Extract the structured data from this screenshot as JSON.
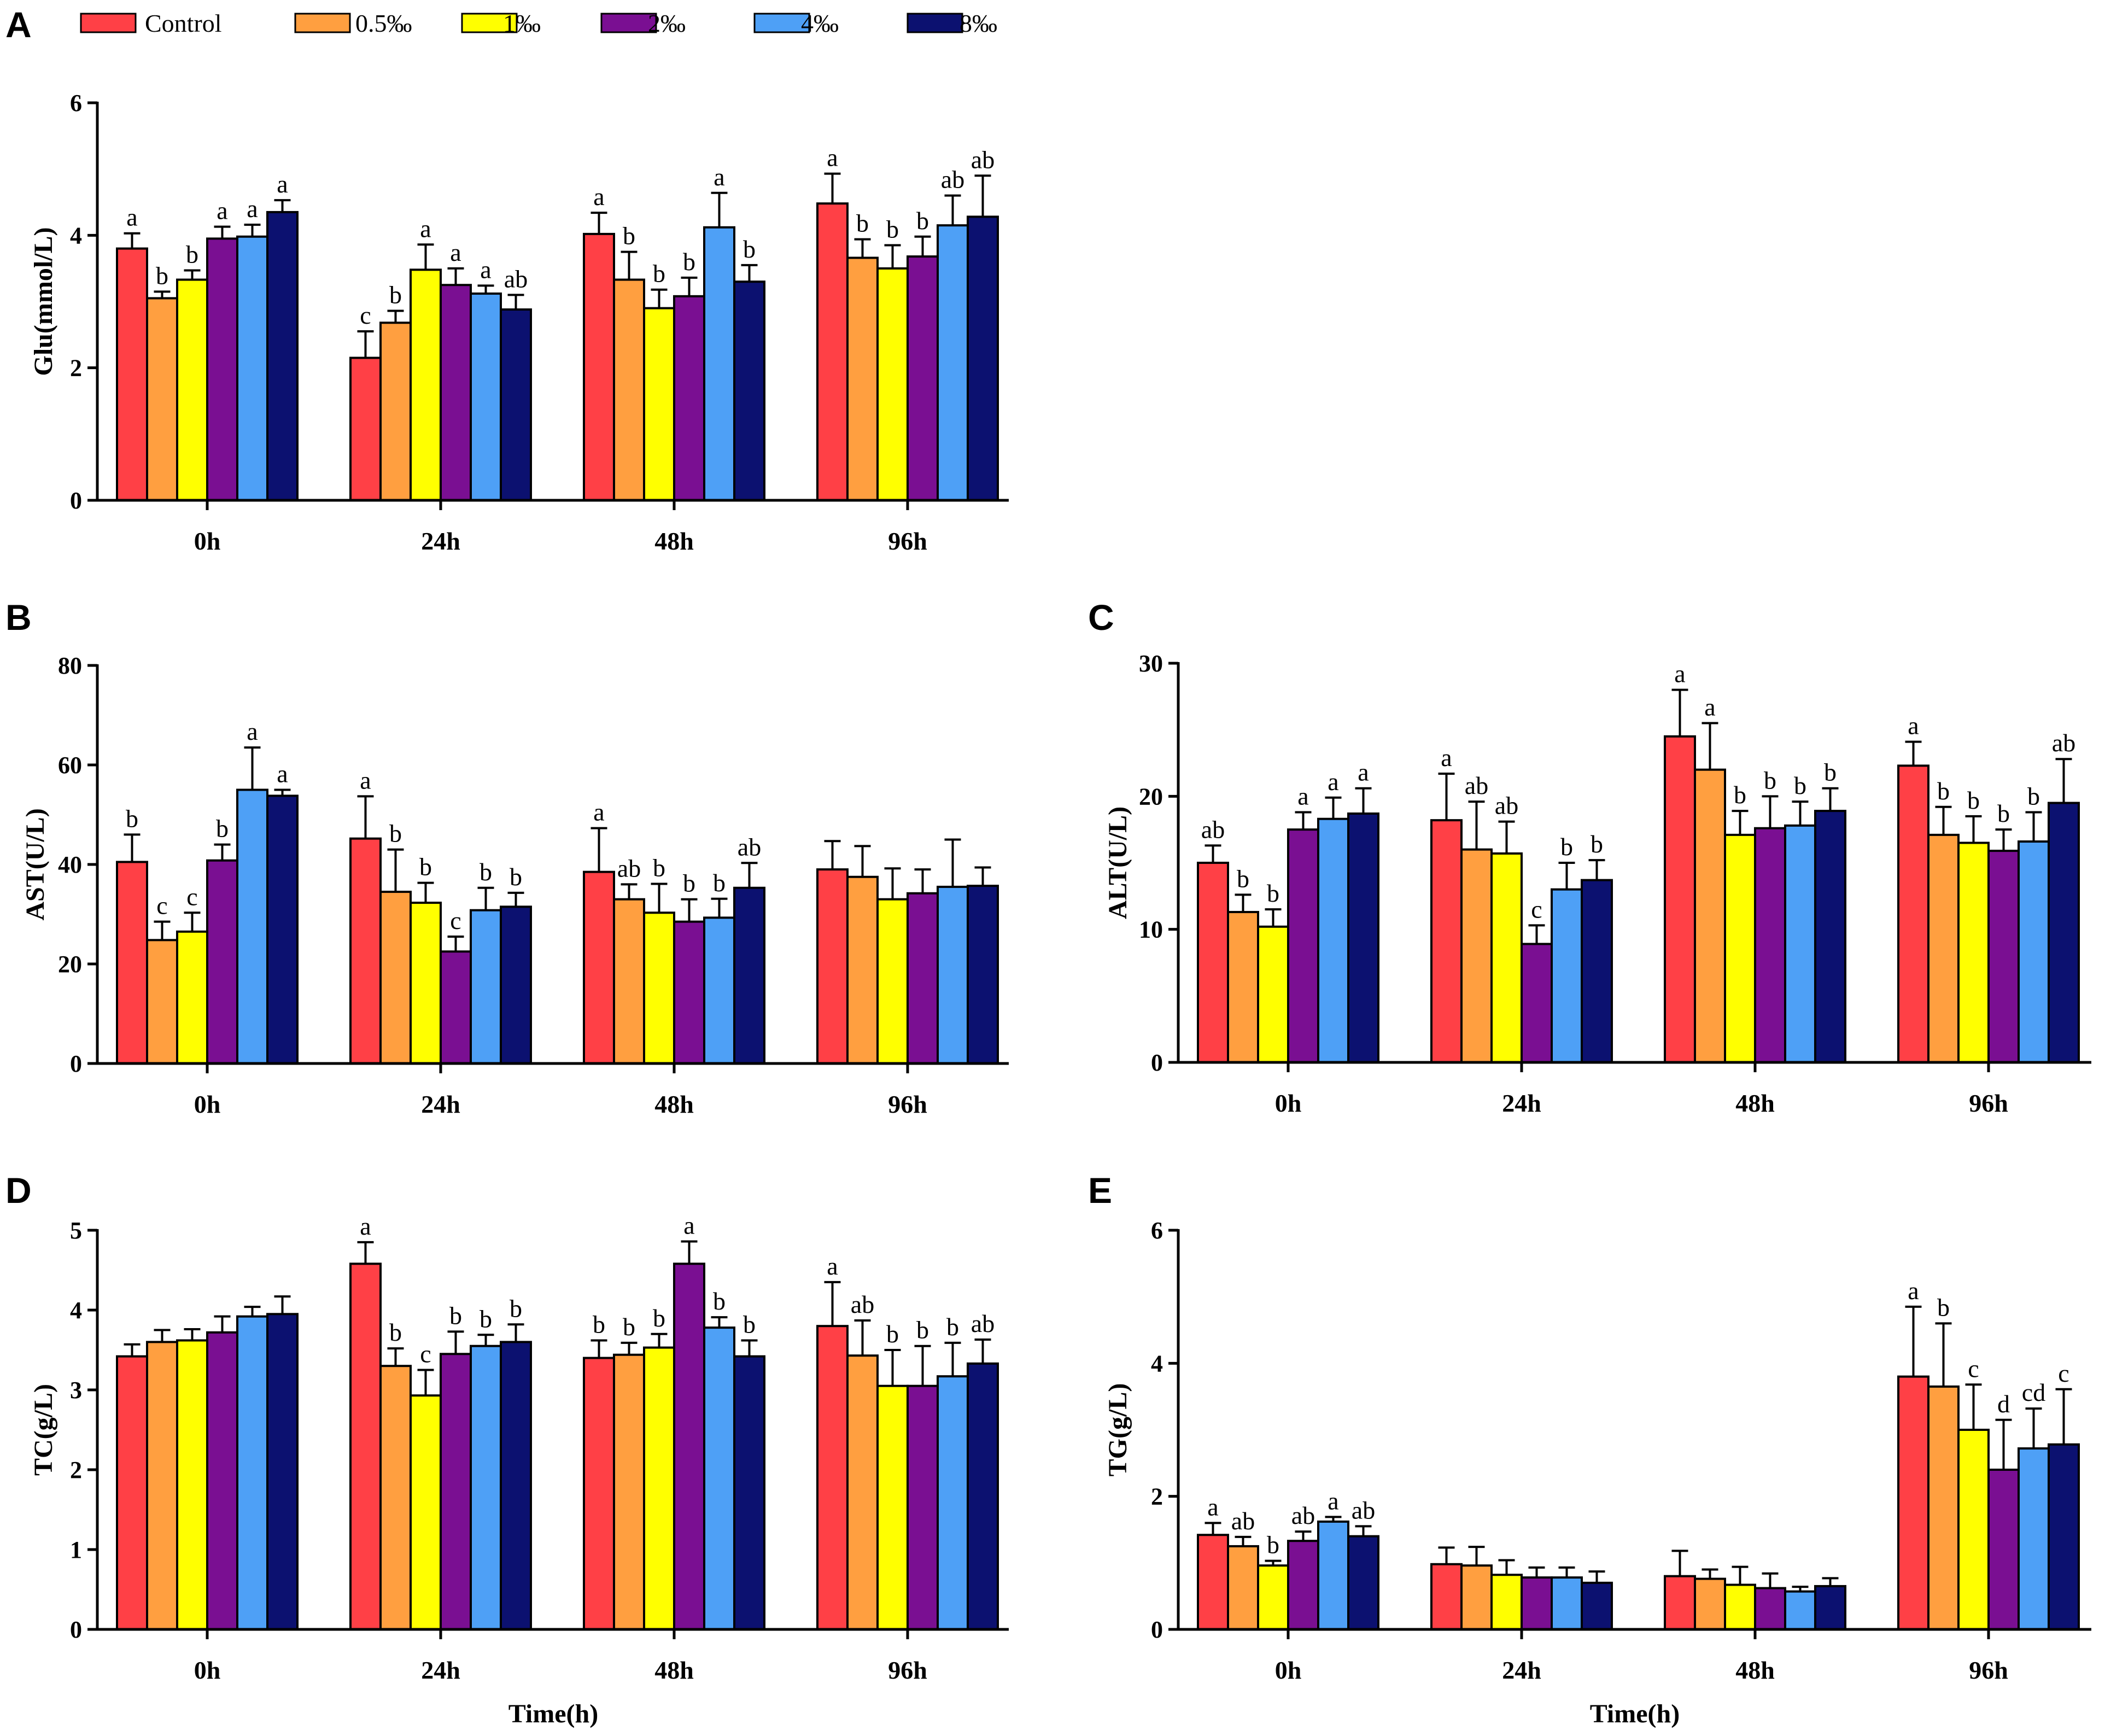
{
  "legend": [
    {
      "label": "Control",
      "color": "#ff4046"
    },
    {
      "label": "0.5‰",
      "color": "#ff9f40"
    },
    {
      "label": "1‰",
      "color": "#ffff00"
    },
    {
      "label": "2‰",
      "color": "#7a0f92"
    },
    {
      "label": "4‰",
      "color": "#4ea0f6"
    },
    {
      "label": "8‰",
      "color": "#0c1170"
    }
  ],
  "chart_data": [
    {
      "panel": "A",
      "type": "bar",
      "ylabel": "Glu(mmol/L)",
      "xlabel": "",
      "ylim": [
        0,
        6
      ],
      "yticks": [
        0,
        2,
        4,
        6
      ],
      "categories": [
        "0h",
        "24h",
        "48h",
        "96h"
      ],
      "series": [
        {
          "name": "Control",
          "values": [
            3.8,
            2.15,
            4.02,
            4.48
          ],
          "errors": [
            0.23,
            0.4,
            0.32,
            0.45
          ],
          "letters": [
            "a",
            "c",
            "a",
            "a"
          ]
        },
        {
          "name": "0.5‰",
          "values": [
            3.05,
            2.68,
            3.33,
            3.66
          ],
          "errors": [
            0.1,
            0.18,
            0.42,
            0.28
          ],
          "letters": [
            "b",
            "b",
            "b",
            "b"
          ]
        },
        {
          "name": "1‰",
          "values": [
            3.33,
            3.48,
            2.9,
            3.5
          ],
          "errors": [
            0.14,
            0.38,
            0.28,
            0.35
          ],
          "letters": [
            "b",
            "a",
            "b",
            "b"
          ]
        },
        {
          "name": "2‰",
          "values": [
            3.95,
            3.25,
            3.08,
            3.68
          ],
          "errors": [
            0.18,
            0.25,
            0.28,
            0.3
          ],
          "letters": [
            "a",
            "a",
            "b",
            "b"
          ]
        },
        {
          "name": "4‰",
          "values": [
            3.98,
            3.12,
            4.12,
            4.15
          ],
          "errors": [
            0.18,
            0.12,
            0.52,
            0.45
          ],
          "letters": [
            "a",
            "a",
            "a",
            "ab"
          ]
        },
        {
          "name": "8‰",
          "values": [
            4.35,
            2.88,
            3.3,
            4.28
          ],
          "errors": [
            0.18,
            0.22,
            0.25,
            0.62
          ],
          "letters": [
            "a",
            "ab",
            "b",
            "ab"
          ]
        }
      ]
    },
    {
      "panel": "B",
      "type": "bar",
      "ylabel": "AST(U/L)",
      "xlabel": "",
      "ylim": [
        0,
        80
      ],
      "yticks": [
        0,
        20,
        40,
        60,
        80
      ],
      "categories": [
        "0h",
        "24h",
        "48h",
        "96h"
      ],
      "series": [
        {
          "name": "Control",
          "values": [
            40.5,
            45.2,
            38.5,
            39.0
          ],
          "errors": [
            5.5,
            8.5,
            8.8,
            5.7
          ],
          "letters": [
            "b",
            "a",
            "a",
            ""
          ]
        },
        {
          "name": "0.5‰",
          "values": [
            24.8,
            34.5,
            33.0,
            37.5
          ],
          "errors": [
            3.7,
            8.5,
            3.0,
            6.2
          ],
          "letters": [
            "c",
            "b",
            "ab",
            ""
          ]
        },
        {
          "name": "1‰",
          "values": [
            26.5,
            32.3,
            30.3,
            33.0
          ],
          "errors": [
            3.8,
            4.0,
            5.8,
            6.2
          ],
          "letters": [
            "c",
            "b",
            "b",
            ""
          ]
        },
        {
          "name": "2‰",
          "values": [
            40.8,
            22.5,
            28.5,
            34.2
          ],
          "errors": [
            3.2,
            3.0,
            4.5,
            4.8
          ],
          "letters": [
            "b",
            "c",
            "b",
            ""
          ]
        },
        {
          "name": "4‰",
          "values": [
            55.0,
            30.8,
            29.3,
            35.5
          ],
          "errors": [
            8.5,
            4.5,
            3.8,
            9.5
          ],
          "letters": [
            "a",
            "b",
            "b",
            ""
          ]
        },
        {
          "name": "8‰",
          "values": [
            53.8,
            31.5,
            35.3,
            35.7
          ],
          "errors": [
            1.2,
            2.8,
            5.0,
            3.7
          ],
          "letters": [
            "a",
            "b",
            "ab",
            ""
          ]
        }
      ]
    },
    {
      "panel": "C",
      "type": "bar",
      "ylabel": "ALT(U/L)",
      "xlabel": "",
      "ylim": [
        0,
        30
      ],
      "yticks": [
        0,
        10,
        20,
        30
      ],
      "categories": [
        "0h",
        "24h",
        "48h",
        "96h"
      ],
      "series": [
        {
          "name": "Control",
          "values": [
            15.0,
            18.2,
            24.5,
            22.3
          ],
          "errors": [
            1.3,
            3.5,
            3.5,
            1.8
          ],
          "letters": [
            "ab",
            "a",
            "a",
            "a"
          ]
        },
        {
          "name": "0.5‰",
          "values": [
            11.3,
            16.0,
            22.0,
            17.1
          ],
          "errors": [
            1.3,
            3.6,
            3.5,
            2.1
          ],
          "letters": [
            "b",
            "ab",
            "a",
            "b"
          ]
        },
        {
          "name": "1‰",
          "values": [
            10.2,
            15.7,
            17.1,
            16.5
          ],
          "errors": [
            1.3,
            2.4,
            1.8,
            2.0
          ],
          "letters": [
            "b",
            "ab",
            "b",
            "b"
          ]
        },
        {
          "name": "2‰",
          "values": [
            17.5,
            8.9,
            17.6,
            15.9
          ],
          "errors": [
            1.3,
            1.4,
            2.4,
            1.6
          ],
          "letters": [
            "a",
            "c",
            "b",
            "b"
          ]
        },
        {
          "name": "4‰",
          "values": [
            18.3,
            13.0,
            17.8,
            16.6
          ],
          "errors": [
            1.6,
            2.0,
            1.8,
            2.2
          ],
          "letters": [
            "a",
            "b",
            "b",
            "b"
          ]
        },
        {
          "name": "8‰",
          "values": [
            18.7,
            13.7,
            18.9,
            19.5
          ],
          "errors": [
            1.9,
            1.5,
            1.7,
            3.3
          ],
          "letters": [
            "a",
            "b",
            "b",
            "ab"
          ]
        }
      ]
    },
    {
      "panel": "D",
      "type": "bar",
      "ylabel": "TC(g/L)",
      "xlabel": "Time(h)",
      "ylim": [
        0,
        5
      ],
      "yticks": [
        0,
        1,
        2,
        3,
        4,
        5
      ],
      "categories": [
        "0h",
        "24h",
        "48h",
        "96h"
      ],
      "series": [
        {
          "name": "Control",
          "values": [
            3.42,
            4.58,
            3.4,
            3.8
          ],
          "errors": [
            0.15,
            0.27,
            0.22,
            0.55
          ],
          "letters": [
            "",
            "a",
            "b",
            "a"
          ]
        },
        {
          "name": "0.5‰",
          "values": [
            3.6,
            3.3,
            3.44,
            3.43
          ],
          "errors": [
            0.15,
            0.22,
            0.15,
            0.44
          ],
          "letters": [
            "",
            "b",
            "b",
            "ab"
          ]
        },
        {
          "name": "1‰",
          "values": [
            3.62,
            2.93,
            3.53,
            3.05
          ],
          "errors": [
            0.14,
            0.32,
            0.17,
            0.45
          ],
          "letters": [
            "",
            "c",
            "b",
            "b"
          ]
        },
        {
          "name": "2‰",
          "values": [
            3.72,
            3.45,
            4.58,
            3.05
          ],
          "errors": [
            0.2,
            0.28,
            0.28,
            0.5
          ],
          "letters": [
            "",
            "b",
            "a",
            "b"
          ]
        },
        {
          "name": "4‰",
          "values": [
            3.92,
            3.55,
            3.78,
            3.17
          ],
          "errors": [
            0.12,
            0.14,
            0.13,
            0.42
          ],
          "letters": [
            "",
            "b",
            "b",
            "b"
          ]
        },
        {
          "name": "8‰",
          "values": [
            3.95,
            3.6,
            3.42,
            3.33
          ],
          "errors": [
            0.22,
            0.22,
            0.2,
            0.3
          ],
          "letters": [
            "",
            "b",
            "b",
            "ab"
          ]
        }
      ]
    },
    {
      "panel": "E",
      "type": "bar",
      "ylabel": "TG(g/L)",
      "xlabel": "Time(h)",
      "ylim": [
        0,
        6
      ],
      "yticks": [
        0,
        2,
        4,
        6
      ],
      "categories": [
        "0h",
        "24h",
        "48h",
        "96h"
      ],
      "series": [
        {
          "name": "Control",
          "values": [
            1.42,
            0.98,
            0.8,
            3.8
          ],
          "errors": [
            0.18,
            0.25,
            0.38,
            1.05
          ],
          "letters": [
            "a",
            "",
            "",
            "a"
          ]
        },
        {
          "name": "0.5‰",
          "values": [
            1.25,
            0.96,
            0.76,
            3.65
          ],
          "errors": [
            0.14,
            0.28,
            0.14,
            0.95
          ],
          "letters": [
            "ab",
            "",
            "",
            "b"
          ]
        },
        {
          "name": "1‰",
          "values": [
            0.96,
            0.82,
            0.67,
            3.0
          ],
          "errors": [
            0.07,
            0.22,
            0.27,
            0.68
          ],
          "letters": [
            "b",
            "",
            "",
            "c"
          ]
        },
        {
          "name": "2‰",
          "values": [
            1.33,
            0.78,
            0.62,
            2.4
          ],
          "errors": [
            0.14,
            0.15,
            0.22,
            0.75
          ],
          "letters": [
            "ab",
            "",
            "",
            "d"
          ]
        },
        {
          "name": "4‰",
          "values": [
            1.62,
            0.78,
            0.57,
            2.72
          ],
          "errors": [
            0.07,
            0.15,
            0.07,
            0.6
          ],
          "letters": [
            "a",
            "",
            "",
            "cd"
          ]
        },
        {
          "name": "8‰",
          "values": [
            1.4,
            0.7,
            0.65,
            2.78
          ],
          "errors": [
            0.15,
            0.17,
            0.12,
            0.83
          ],
          "letters": [
            "ab",
            "",
            "",
            "c"
          ]
        }
      ]
    }
  ]
}
